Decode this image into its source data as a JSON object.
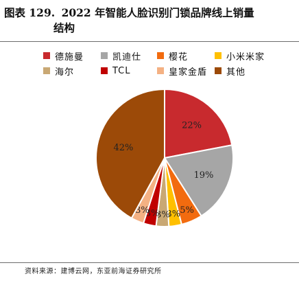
{
  "figure": {
    "label": "图表 129.",
    "title_line1": "2022 年智能人脸识别门锁品牌线上销量",
    "title_line2": "结构"
  },
  "source": "资料来源：建博云网，东亚前海证券研究所",
  "chart_data": {
    "type": "pie",
    "title": "2022 年智能人脸识别门锁品牌线上销量结构",
    "legend_position": "top",
    "slices": [
      {
        "name": "德施曼",
        "value": 22,
        "label": "22%",
        "color": "#c82a2e"
      },
      {
        "name": "凯迪仕",
        "value": 19,
        "label": "19%",
        "color": "#a6a6a6"
      },
      {
        "name": "樱花",
        "value": 5,
        "label": "5%",
        "color": "#f26b0f"
      },
      {
        "name": "小米米家",
        "value": 3,
        "label": "3%",
        "color": "#ffc000"
      },
      {
        "name": "海尔",
        "value": 3,
        "label": "3%",
        "color": "#c9a874"
      },
      {
        "name": "TCL",
        "value": 3,
        "label": "3%",
        "color": "#c00000"
      },
      {
        "name": "皇家金盾",
        "value": 3,
        "label": "3%",
        "color": "#f4b183"
      },
      {
        "name": "其他",
        "value": 42,
        "label": "42%",
        "color": "#9c4a08"
      }
    ]
  }
}
